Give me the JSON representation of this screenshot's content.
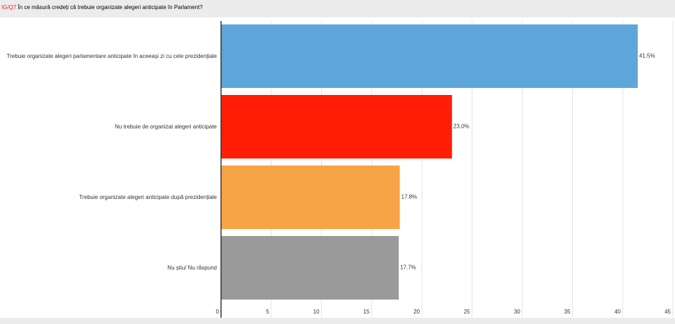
{
  "chart_data": {
    "type": "hbar",
    "title_prefix": "IG/Q7",
    "title": "În ce măsură credeți că trebuie organizate alegeri anticipate în Parlament?",
    "categories": [
      "Trebuie organizate alegeri parlamentare anticipate în aceeași zi cu cele prezidențiale",
      "Nu trebuie de organizat alegeri anticipate",
      "Trebuie organizate alegeri anticipate după prezidențiale",
      "Nu știu/ Nu răspund"
    ],
    "values": [
      41.5,
      23.0,
      17.8,
      17.7
    ],
    "value_labels": [
      "41.5%",
      "23.0%",
      "17.8%",
      "17.7%"
    ],
    "colors": [
      "#5ca6d9",
      "#ff1e05",
      "#f7a446",
      "#9a9a9a"
    ],
    "xlim": [
      0,
      45
    ],
    "xticks": [
      0,
      5,
      10,
      15,
      20,
      25,
      30,
      35,
      40,
      45
    ],
    "grid": true
  }
}
